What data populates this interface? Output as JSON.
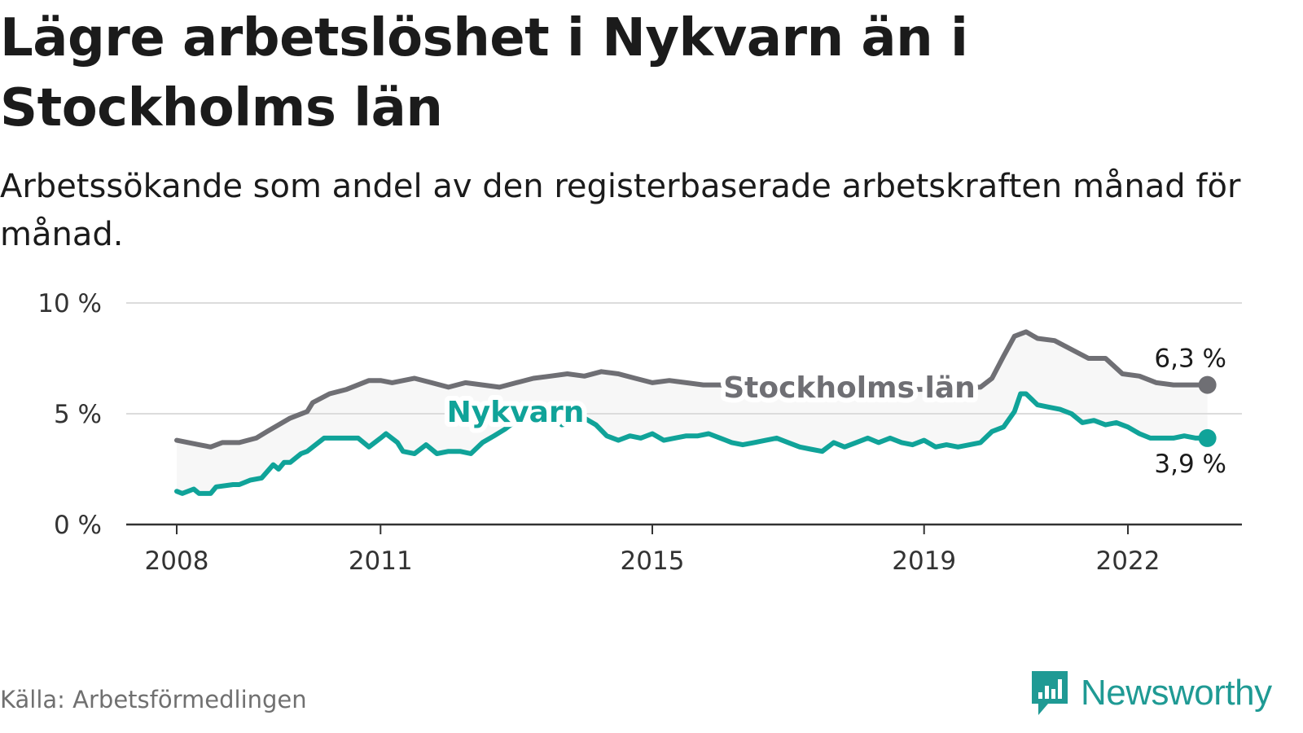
{
  "header": {
    "title": "Lägre arbetslöshet i Nykvarn än i Stockholms län",
    "subtitle": "Arbetssökande som andel av den registerbaserade arbetskraften månad för månad."
  },
  "footer": {
    "source": "Källa: Arbetsförmedlingen",
    "brand": "Newsworthy"
  },
  "colors": {
    "stockholm": "#6f6f74",
    "nykvarn": "#10a399",
    "grid": "#dcdcdc",
    "axis": "#333333",
    "band": "#f7f7f7",
    "brand": "#1f9a94"
  },
  "icons": {
    "logo": "newsworthy-logo-icon"
  },
  "chart_data": {
    "type": "line",
    "title": "Lägre arbetslöshet i Nykvarn än i Stockholms län",
    "xlabel": "",
    "ylabel": "",
    "ylim": [
      0,
      10
    ],
    "xlim": [
      2008,
      2023.3
    ],
    "y_ticks": [
      {
        "value": 0,
        "label": "0 %"
      },
      {
        "value": 5,
        "label": "5 %"
      },
      {
        "value": 10,
        "label": "10 %"
      }
    ],
    "x_ticks": [
      {
        "value": 2008,
        "label": "2008"
      },
      {
        "value": 2011,
        "label": "2011"
      },
      {
        "value": 2015,
        "label": "2015"
      },
      {
        "value": 2019,
        "label": "2019"
      },
      {
        "value": 2022,
        "label": "2022"
      }
    ],
    "grid": true,
    "series": [
      {
        "name": "Stockholms län",
        "key": "stockholm",
        "end_label": "6,3 %",
        "points": [
          [
            2008.0,
            3.8
          ],
          [
            2008.33,
            3.6
          ],
          [
            2008.5,
            3.5
          ],
          [
            2008.67,
            3.7
          ],
          [
            2008.92,
            3.7
          ],
          [
            2009.17,
            3.9
          ],
          [
            2009.33,
            4.2
          ],
          [
            2009.67,
            4.8
          ],
          [
            2009.92,
            5.1
          ],
          [
            2010.0,
            5.5
          ],
          [
            2010.25,
            5.9
          ],
          [
            2010.5,
            6.1
          ],
          [
            2010.83,
            6.5
          ],
          [
            2011.0,
            6.5
          ],
          [
            2011.17,
            6.4
          ],
          [
            2011.5,
            6.6
          ],
          [
            2011.75,
            6.4
          ],
          [
            2012.0,
            6.2
          ],
          [
            2012.25,
            6.4
          ],
          [
            2012.5,
            6.3
          ],
          [
            2012.75,
            6.2
          ],
          [
            2013.0,
            6.4
          ],
          [
            2013.25,
            6.6
          ],
          [
            2013.5,
            6.7
          ],
          [
            2013.75,
            6.8
          ],
          [
            2014.0,
            6.7
          ],
          [
            2014.25,
            6.9
          ],
          [
            2014.5,
            6.8
          ],
          [
            2014.75,
            6.6
          ],
          [
            2015.0,
            6.4
          ],
          [
            2015.25,
            6.5
          ],
          [
            2015.5,
            6.4
          ],
          [
            2015.75,
            6.3
          ],
          [
            2016.0,
            6.3
          ],
          [
            2016.25,
            6.2
          ],
          [
            2016.5,
            6.2
          ],
          [
            2016.75,
            6.1
          ],
          [
            2017.0,
            6.1
          ],
          [
            2017.5,
            6.1
          ],
          [
            2018.0,
            6.1
          ],
          [
            2018.5,
            6.1
          ],
          [
            2019.0,
            6.1
          ],
          [
            2019.5,
            6.2
          ],
          [
            2019.83,
            6.2
          ],
          [
            2020.0,
            6.6
          ],
          [
            2020.17,
            7.6
          ],
          [
            2020.33,
            8.5
          ],
          [
            2020.5,
            8.7
          ],
          [
            2020.67,
            8.4
          ],
          [
            2020.92,
            8.3
          ],
          [
            2021.17,
            7.9
          ],
          [
            2021.42,
            7.5
          ],
          [
            2021.67,
            7.5
          ],
          [
            2021.92,
            6.8
          ],
          [
            2022.17,
            6.7
          ],
          [
            2022.42,
            6.4
          ],
          [
            2022.67,
            6.3
          ],
          [
            2023.0,
            6.3
          ],
          [
            2023.17,
            6.3
          ]
        ]
      },
      {
        "name": "Nykvarn",
        "key": "nykvarn",
        "end_label": "3,9 %",
        "points": [
          [
            2008.0,
            1.5
          ],
          [
            2008.08,
            1.4
          ],
          [
            2008.25,
            1.6
          ],
          [
            2008.33,
            1.4
          ],
          [
            2008.5,
            1.4
          ],
          [
            2008.58,
            1.7
          ],
          [
            2008.83,
            1.8
          ],
          [
            2008.92,
            1.8
          ],
          [
            2009.08,
            2.0
          ],
          [
            2009.25,
            2.1
          ],
          [
            2009.42,
            2.7
          ],
          [
            2009.5,
            2.5
          ],
          [
            2009.58,
            2.8
          ],
          [
            2009.67,
            2.8
          ],
          [
            2009.83,
            3.2
          ],
          [
            2009.92,
            3.3
          ],
          [
            2010.17,
            3.9
          ],
          [
            2010.33,
            3.9
          ],
          [
            2010.5,
            3.9
          ],
          [
            2010.67,
            3.9
          ],
          [
            2010.83,
            3.5
          ],
          [
            2011.0,
            3.9
          ],
          [
            2011.08,
            4.1
          ],
          [
            2011.25,
            3.7
          ],
          [
            2011.33,
            3.3
          ],
          [
            2011.5,
            3.2
          ],
          [
            2011.67,
            3.6
          ],
          [
            2011.83,
            3.2
          ],
          [
            2012.0,
            3.3
          ],
          [
            2012.17,
            3.3
          ],
          [
            2012.33,
            3.2
          ],
          [
            2012.5,
            3.7
          ],
          [
            2012.67,
            4.0
          ],
          [
            2012.83,
            4.3
          ],
          [
            2013.0,
            4.7
          ],
          [
            2013.17,
            4.9
          ],
          [
            2013.33,
            4.7
          ],
          [
            2013.5,
            4.9
          ],
          [
            2013.67,
            4.5
          ],
          [
            2013.83,
            4.6
          ],
          [
            2014.0,
            4.8
          ],
          [
            2014.17,
            4.5
          ],
          [
            2014.33,
            4.0
          ],
          [
            2014.5,
            3.8
          ],
          [
            2014.67,
            4.0
          ],
          [
            2014.83,
            3.9
          ],
          [
            2015.0,
            4.1
          ],
          [
            2015.17,
            3.8
          ],
          [
            2015.33,
            3.9
          ],
          [
            2015.5,
            4.0
          ],
          [
            2015.67,
            4.0
          ],
          [
            2015.83,
            4.1
          ],
          [
            2016.0,
            3.9
          ],
          [
            2016.17,
            3.7
          ],
          [
            2016.33,
            3.6
          ],
          [
            2016.5,
            3.7
          ],
          [
            2016.67,
            3.8
          ],
          [
            2016.83,
            3.9
          ],
          [
            2017.0,
            3.7
          ],
          [
            2017.17,
            3.5
          ],
          [
            2017.33,
            3.4
          ],
          [
            2017.5,
            3.3
          ],
          [
            2017.67,
            3.7
          ],
          [
            2017.83,
            3.5
          ],
          [
            2018.0,
            3.7
          ],
          [
            2018.17,
            3.9
          ],
          [
            2018.33,
            3.7
          ],
          [
            2018.5,
            3.9
          ],
          [
            2018.67,
            3.7
          ],
          [
            2018.83,
            3.6
          ],
          [
            2019.0,
            3.8
          ],
          [
            2019.17,
            3.5
          ],
          [
            2019.33,
            3.6
          ],
          [
            2019.5,
            3.5
          ],
          [
            2019.67,
            3.6
          ],
          [
            2019.83,
            3.7
          ],
          [
            2020.0,
            4.2
          ],
          [
            2020.17,
            4.4
          ],
          [
            2020.33,
            5.1
          ],
          [
            2020.42,
            5.9
          ],
          [
            2020.5,
            5.9
          ],
          [
            2020.67,
            5.4
          ],
          [
            2020.83,
            5.3
          ],
          [
            2021.0,
            5.2
          ],
          [
            2021.17,
            5.0
          ],
          [
            2021.33,
            4.6
          ],
          [
            2021.5,
            4.7
          ],
          [
            2021.67,
            4.5
          ],
          [
            2021.83,
            4.6
          ],
          [
            2022.0,
            4.4
          ],
          [
            2022.17,
            4.1
          ],
          [
            2022.33,
            3.9
          ],
          [
            2022.5,
            3.9
          ],
          [
            2022.67,
            3.9
          ],
          [
            2022.83,
            4.0
          ],
          [
            2023.0,
            3.9
          ],
          [
            2023.17,
            3.9
          ]
        ]
      }
    ]
  }
}
